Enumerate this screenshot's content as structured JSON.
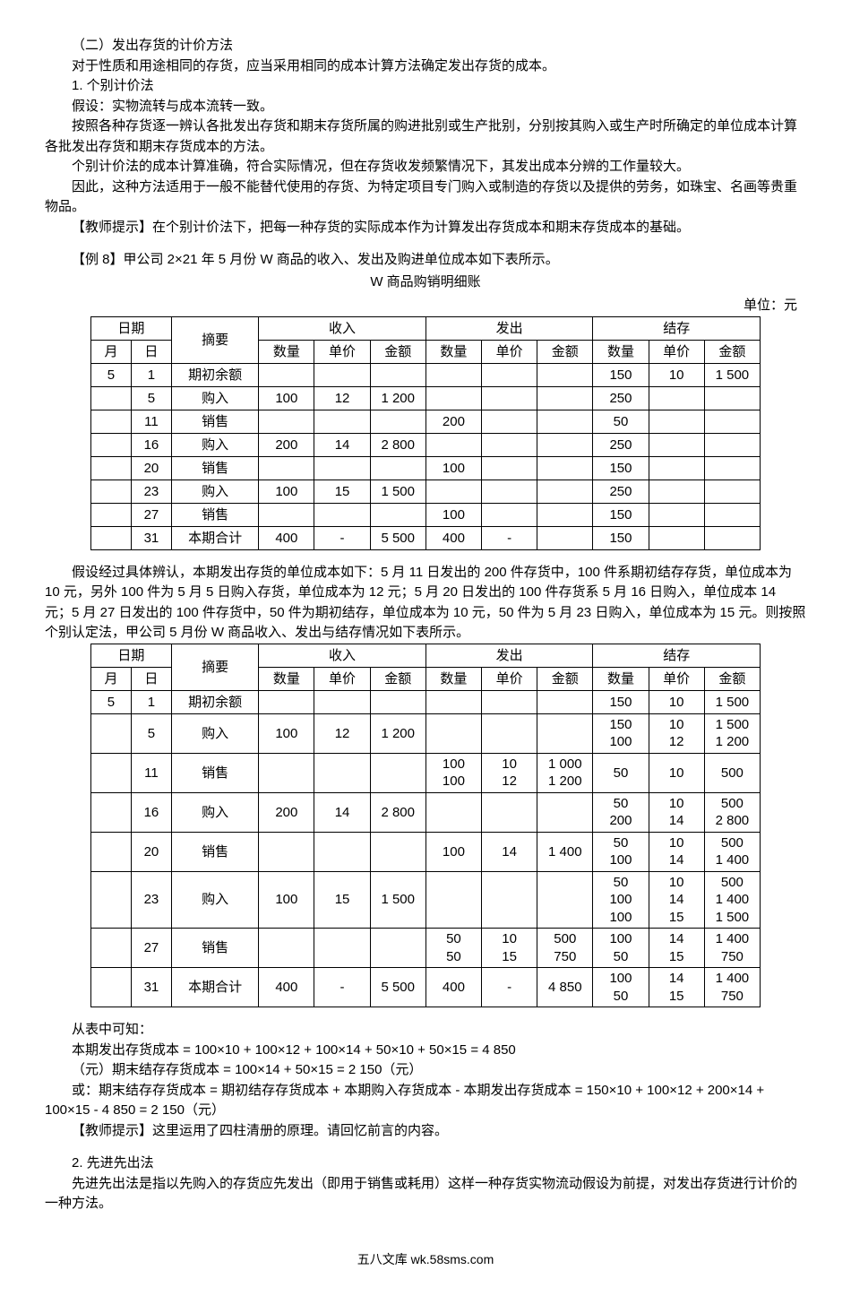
{
  "intro": {
    "h1": "（二）发出存货的计价方法",
    "p1": "对于性质和用途相同的存货，应当采用相同的成本计算方法确定发出存货的成本。",
    "h2": "1. 个别计价法",
    "p2": "假设：实物流转与成本流转一致。",
    "p3": "按照各种存货逐一辨认各批发出存货和期末存货所属的购进批别或生产批别，分别按其购入或生产时所确定的单位成本计算各批发出存货和期末存货成本的方法。",
    "p4": "个别计价法的成本计算准确，符合实际情况，但在存货收发频繁情况下，其发出成本分辨的工作量较大。",
    "p5": "因此，这种方法适用于一般不能替代使用的存货、为特定项目专门购入或制造的存货以及提供的劳务，如珠宝、名画等贵重物品。",
    "p6": "【教师提示】在个别计价法下，把每一种存货的实际成本作为计算发出存货成本和期末存货成本的基础。"
  },
  "example": {
    "label": "【例 8】甲公司 2×21 年 5 月份 W 商品的收入、发出及购进单位成本如下表所示。",
    "caption": "W 商品购销明细账",
    "unit": "单位：元"
  },
  "theaders": {
    "date": "日期",
    "month": "月",
    "day": "日",
    "summary": "摘要",
    "income": "收入",
    "outgo": "发出",
    "balance": "结存",
    "qty": "数量",
    "price": "单价",
    "amount": "金额"
  },
  "table1": {
    "rows": [
      {
        "m": "5",
        "d": "1",
        "s": "期初余额",
        "iq": "",
        "ip": "",
        "ia": "",
        "oq": "",
        "op": "",
        "oa": "",
        "bq": "150",
        "bp": "10",
        "ba": "1 500"
      },
      {
        "m": "",
        "d": "5",
        "s": "购入",
        "iq": "100",
        "ip": "12",
        "ia": "1 200",
        "oq": "",
        "op": "",
        "oa": "",
        "bq": "250",
        "bp": "",
        "ba": ""
      },
      {
        "m": "",
        "d": "11",
        "s": "销售",
        "iq": "",
        "ip": "",
        "ia": "",
        "oq": "200",
        "op": "",
        "oa": "",
        "bq": "50",
        "bp": "",
        "ba": ""
      },
      {
        "m": "",
        "d": "16",
        "s": "购入",
        "iq": "200",
        "ip": "14",
        "ia": "2 800",
        "oq": "",
        "op": "",
        "oa": "",
        "bq": "250",
        "bp": "",
        "ba": ""
      },
      {
        "m": "",
        "d": "20",
        "s": "销售",
        "iq": "",
        "ip": "",
        "ia": "",
        "oq": "100",
        "op": "",
        "oa": "",
        "bq": "150",
        "bp": "",
        "ba": ""
      },
      {
        "m": "",
        "d": "23",
        "s": "购入",
        "iq": "100",
        "ip": "15",
        "ia": "1 500",
        "oq": "",
        "op": "",
        "oa": "",
        "bq": "250",
        "bp": "",
        "ba": ""
      },
      {
        "m": "",
        "d": "27",
        "s": "销售",
        "iq": "",
        "ip": "",
        "ia": "",
        "oq": "100",
        "op": "",
        "oa": "",
        "bq": "150",
        "bp": "",
        "ba": ""
      },
      {
        "m": "",
        "d": "31",
        "s": "本期合计",
        "iq": "400",
        "ip": "-",
        "ia": "5 500",
        "oq": "400",
        "op": "-",
        "oa": "",
        "bq": "150",
        "bp": "",
        "ba": ""
      }
    ]
  },
  "mid_para": "假设经过具体辨认，本期发出存货的单位成本如下：5 月 11 日发出的 200 件存货中，100 件系期初结存存货，单位成本为 10 元，另外 100 件为 5 月 5 日购入存货，单位成本为 12 元；5 月 20 日发出的 100 件存货系 5 月 16 日购入，单位成本 14 元；5 月 27 日发出的 100 件存货中，50 件为期初结存，单位成本为 10 元，50 件为 5 月 23 日购入，单位成本为 15 元。则按照个别认定法，甲公司 5 月份 W 商品收入、发出与结存情况如下表所示。",
  "table2": {
    "rows": [
      {
        "m": "5",
        "d": "1",
        "s": "期初余额",
        "iq": "",
        "ip": "",
        "ia": "",
        "oq": "",
        "op": "",
        "oa": "",
        "bq": "150",
        "bp": "10",
        "ba": "1 500"
      },
      {
        "m": "",
        "d": "5",
        "s": "购入",
        "iq": "100",
        "ip": "12",
        "ia": "1 200",
        "oq": "",
        "op": "",
        "oa": "",
        "bq": "150\n100",
        "bp": "10\n12",
        "ba": "1 500\n1 200"
      },
      {
        "m": "",
        "d": "11",
        "s": "销售",
        "iq": "",
        "ip": "",
        "ia": "",
        "oq": "100\n100",
        "op": "10\n12",
        "oa": "1 000\n1 200",
        "bq": "50",
        "bp": "10",
        "ba": "500"
      },
      {
        "m": "",
        "d": "16",
        "s": "购入",
        "iq": "200",
        "ip": "14",
        "ia": "2 800",
        "oq": "",
        "op": "",
        "oa": "",
        "bq": "50\n200",
        "bp": "10\n14",
        "ba": "500\n2 800"
      },
      {
        "m": "",
        "d": "20",
        "s": "销售",
        "iq": "",
        "ip": "",
        "ia": "",
        "oq": "100",
        "op": "14",
        "oa": "1 400",
        "bq": "50\n100",
        "bp": "10\n14",
        "ba": "500\n1 400"
      },
      {
        "m": "",
        "d": "23",
        "s": "购入",
        "iq": "100",
        "ip": "15",
        "ia": "1 500",
        "oq": "",
        "op": "",
        "oa": "",
        "bq": "50\n100\n100",
        "bp": "10\n14\n15",
        "ba": "500\n1 400\n1 500"
      },
      {
        "m": "",
        "d": "27",
        "s": "销售",
        "iq": "",
        "ip": "",
        "ia": "",
        "oq": "50\n50",
        "op": "10\n15",
        "oa": "500\n750",
        "bq": "100\n50",
        "bp": "14\n15",
        "ba": "1 400\n750"
      },
      {
        "m": "",
        "d": "31",
        "s": "本期合计",
        "iq": "400",
        "ip": "-",
        "ia": "5 500",
        "oq": "400",
        "op": "-",
        "oa": "4 850",
        "bq": "100\n50",
        "bp": "14\n15",
        "ba": "1 400\n750"
      }
    ]
  },
  "calc": {
    "p1": "从表中可知：",
    "p2": "本期发出存货成本 = 100×10 + 100×12 + 100×14 + 50×10 + 50×15 = 4 850",
    "p3": "（元）期末结存存货成本 = 100×14 + 50×15 = 2 150（元）",
    "p4": "或：期末结存存货成本 = 期初结存存货成本 + 本期购入存货成本 - 本期发出存货成本 = 150×10 + 100×12 + 200×14 + 100×15 - 4 850 = 2 150（元）",
    "p5": "【教师提示】这里运用了四柱清册的原理。请回忆前言的内容。"
  },
  "fifo": {
    "h": "2. 先进先出法",
    "p": "先进先出法是指以先购入的存货应先发出（即用于销售或耗用）这样一种存货实物流动假设为前提，对发出存货进行计价的一种方法。"
  },
  "footer": "五八文库 wk.58sms.com"
}
